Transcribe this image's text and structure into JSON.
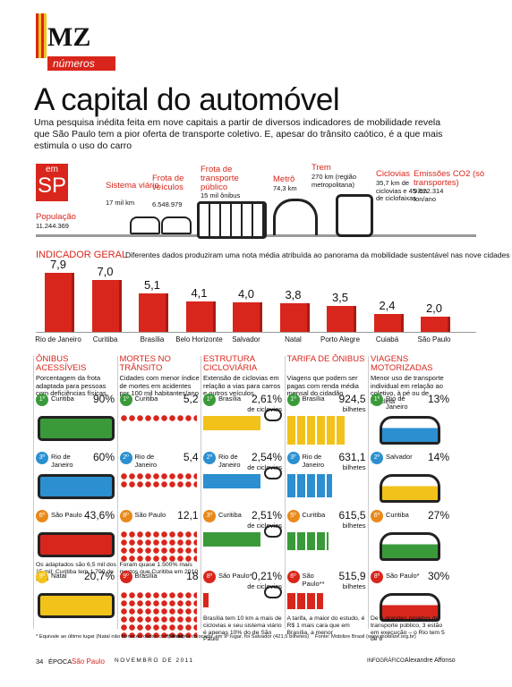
{
  "header": {
    "logo": "MZ",
    "section": "números",
    "title": "A capital do automóvel",
    "intro": "Uma pesquisa inédita feita em nove capitais a partir de diversos indicadores de mobilidade revela que São Paulo tem a pior oferta de transporte coletivo. E, apesar do trânsito caótico, é a que mais estimula o uso do carro"
  },
  "sp": {
    "badge_top": "em",
    "badge": "SP",
    "items": [
      {
        "label": "População",
        "detail": "11.244.369"
      },
      {
        "label": "Sistema viário",
        "detail": "17 mil km"
      },
      {
        "label": "Frota de veículos",
        "detail": "6.548.979"
      },
      {
        "label": "Frota de transporte público",
        "detail": "15 mil ônibus"
      },
      {
        "label": "Metrô",
        "detail": "74,3 km"
      },
      {
        "label": "Trem",
        "detail": "270 km (região metropolitana)"
      },
      {
        "label": "Ciclovias",
        "detail": "35,7 km de ciclovias e 45 km de ciclofaixas"
      },
      {
        "label": "Emissões CO2 (só transportes)",
        "detail": "9.522.314 ton/ano"
      }
    ]
  },
  "chart_data": {
    "type": "bar",
    "title": "INDICADOR GERAL",
    "subtitle": "Diferentes dados produziram uma nota média atribuída ao panorama da mobilidade sustentável nas nove cidades",
    "categories": [
      "Rio de Janeiro",
      "Curitiba",
      "Brasília",
      "Belo Horizonte",
      "Salvador",
      "Natal",
      "Porto Alegre",
      "Cuiabá",
      "São Paulo"
    ],
    "values": [
      7.9,
      7.0,
      5.1,
      4.1,
      4.0,
      3.8,
      3.5,
      2.4,
      2.0
    ],
    "value_labels": [
      "7,9",
      "7,0",
      "5,1",
      "4,1",
      "4,0",
      "3,8",
      "3,5",
      "2,4",
      "2,0"
    ],
    "color": "#d9261c"
  },
  "columns": [
    {
      "title": "ÔNIBUS ACESSÍVEIS",
      "description": "Porcentagem da frota adaptada para pessoas com deficiências físicas",
      "note": "Os adaptados são 6,5 mil dos 15 mil; Curitiba tem 1.700 de 2 mil",
      "note_after": 2,
      "rows": [
        {
          "rank": "1º",
          "city": "Curitiba",
          "value": "90%"
        },
        {
          "rank": "3º",
          "city": "Rio de Janeiro",
          "value": "60%"
        },
        {
          "rank": "6º",
          "city": "São Paulo",
          "value": "43,6%"
        },
        {
          "rank": "9º",
          "city": "Natal",
          "value": "20,7%"
        }
      ]
    },
    {
      "title": "MORTES NO TRÂNSITO",
      "description": "Cidades com menor índice de mortes em acidentes por 100 mil habitantes/ano",
      "note": "Foram quase 1.500% mais mortos que Curitiba em 2010",
      "note_after": 2,
      "rows": [
        {
          "rank": "1º",
          "city": "Curitiba",
          "value": "5,2"
        },
        {
          "rank": "2º",
          "city": "Rio de Janeiro",
          "value": "5,4"
        },
        {
          "rank": "8º",
          "city": "São Paulo",
          "value": "12,1"
        },
        {
          "rank": "9º",
          "city": "Brasília",
          "value": "18"
        }
      ]
    },
    {
      "title": "ESTRUTURA CICLOVIÁRIA",
      "description": "Extensão de ciclovias em relação a vias para carros e outros veículos",
      "note": "Brasília tem 10 km a mais de ciclovias e seu sistema viário é apenas 10% do de São Paulo",
      "note_after": 3,
      "rows": [
        {
          "rank": "1º",
          "city": "Brasília",
          "value": "2,61%",
          "unit": "de ciclovias"
        },
        {
          "rank": "2º",
          "city": "Rio de Janeiro",
          "value": "2,54%",
          "unit": "de ciclovias"
        },
        {
          "rank": "3º",
          "city": "Curitiba",
          "value": "2,51%",
          "unit": "de ciclovias"
        },
        {
          "rank": "8º",
          "city": "São Paulo*",
          "value": "0,21%",
          "unit": "de ciclovias"
        }
      ]
    },
    {
      "title": "TARIFA DE ÔNIBUS",
      "description": "Viagens que podem ser pagas com renda média mensal do cidadão",
      "note": "A tarifa, a maior do estudo, é R$ 1 mais cara que em Brasília, a menor",
      "note_after": 3,
      "rows": [
        {
          "rank": "1º",
          "city": "Brasília",
          "value": "924,5",
          "unit": "bilhetes"
        },
        {
          "rank": "3º",
          "city": "Rio de Janeiro",
          "value": "631,1",
          "unit": "bilhetes"
        },
        {
          "rank": "5º",
          "city": "Curitiba",
          "value": "615,5",
          "unit": "bilhetes"
        },
        {
          "rank": "6º",
          "city": "São Paulo**",
          "value": "515,9",
          "unit": "bilhetes"
        }
      ]
    },
    {
      "title": "VIAGENS MOTORIZADAS",
      "description": "Menor uso de transporte individual em relação ao coletivo, à pé ou de bicicleta",
      "note": "De 6 grandes projetos de transporte público, 3 estão em execução – o Rio tem 5 de 8",
      "note_after": 3,
      "rows": [
        {
          "rank": "1º",
          "city": "Rio de Janeiro",
          "value": "13%"
        },
        {
          "rank": "2º",
          "city": "Salvador",
          "value": "14%"
        },
        {
          "rank": "6º",
          "city": "Curitiba",
          "value": "27%"
        },
        {
          "rank": "8º",
          "city": "São Paulo*",
          "value": "30%"
        }
      ]
    }
  ],
  "footnotes": [
    "* Equivale ao último lugar (Natal não forneceu dados completos)",
    "** A última colocada, em 9º lugar, foi Salvador (421,5 bilhetes)",
    "Fonte: Mobilize Brasil (www.mobilize.org.br)"
  ],
  "footer": {
    "page": "34",
    "magazine": "ÉPOCA",
    "edition": "São Paulo",
    "date": "NOVEMBRO DE 2011",
    "credit_label": "INFOGRÁFICO:",
    "credit": "Alexandre Affonso"
  }
}
